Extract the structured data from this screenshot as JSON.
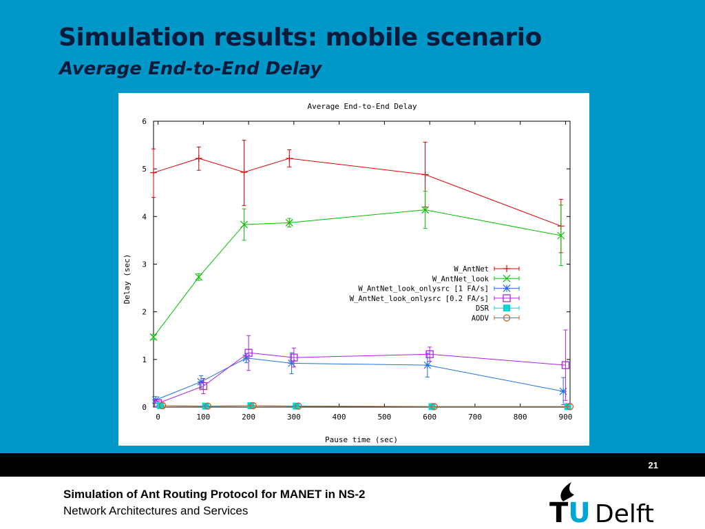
{
  "slide": {
    "title": "Simulation results: mobile scenario",
    "subtitle": "Average End-to-End Delay",
    "page_number": "21"
  },
  "footer": {
    "title": "Simulation of Ant Routing Protocol for MANET in NS-2",
    "subtitle": "Network Architectures and Services",
    "logo_text_left": "TU",
    "logo_text_right": "Delft"
  },
  "colors": {
    "background": "#0098c8",
    "title_text": "#0a1a3a",
    "footer_bar": "#000000",
    "logo_blue": "#00a6d6"
  },
  "chart_data": {
    "type": "line",
    "title": "Average End-to-End Delay",
    "xlabel": "Pause time (sec)",
    "ylabel": "Delay (sec)",
    "xlim": [
      -10,
      910
    ],
    "ylim": [
      0,
      6
    ],
    "x_ticks": [
      0,
      100,
      200,
      300,
      400,
      500,
      600,
      700,
      800,
      900
    ],
    "y_ticks": [
      0,
      1,
      2,
      3,
      4,
      5,
      6
    ],
    "legend_position": "right-middle",
    "series": [
      {
        "name": "W_AntNet",
        "color": "#e00000",
        "marker": "plus",
        "points": [
          {
            "x": -10,
            "y": 4.92,
            "lo": 4.4,
            "hi": 5.42
          },
          {
            "x": 90,
            "y": 5.22,
            "lo": 4.97,
            "hi": 5.46
          },
          {
            "x": 190,
            "y": 4.93,
            "lo": 4.23,
            "hi": 5.6
          },
          {
            "x": 290,
            "y": 5.22,
            "lo": 5.04,
            "hi": 5.4
          },
          {
            "x": 590,
            "y": 4.88,
            "lo": 4.2,
            "hi": 5.56
          },
          {
            "x": 890,
            "y": 3.8,
            "lo": 3.24,
            "hi": 4.36
          }
        ]
      },
      {
        "name": "W_AntNet_look",
        "color": "#00c000",
        "marker": "cross",
        "points": [
          {
            "x": -10,
            "y": 1.47,
            "lo": 1.42,
            "hi": 1.52
          },
          {
            "x": 90,
            "y": 2.73,
            "lo": 2.66,
            "hi": 2.8
          },
          {
            "x": 190,
            "y": 3.83,
            "lo": 3.5,
            "hi": 4.16
          },
          {
            "x": 290,
            "y": 3.87,
            "lo": 3.78,
            "hi": 3.96
          },
          {
            "x": 590,
            "y": 4.14,
            "lo": 3.75,
            "hi": 4.53
          },
          {
            "x": 890,
            "y": 3.6,
            "lo": 2.97,
            "hi": 4.24
          }
        ]
      },
      {
        "name": "W_AntNet_look_onlysrc [1 FA/s]",
        "color": "#2070e0",
        "marker": "star",
        "points": [
          {
            "x": -5,
            "y": 0.15,
            "lo": 0.08,
            "hi": 0.22
          },
          {
            "x": 95,
            "y": 0.53,
            "lo": 0.4,
            "hi": 0.66
          },
          {
            "x": 195,
            "y": 1.03,
            "lo": 0.93,
            "hi": 1.13
          },
          {
            "x": 295,
            "y": 0.92,
            "lo": 0.7,
            "hi": 1.14
          },
          {
            "x": 595,
            "y": 0.88,
            "lo": 0.63,
            "hi": 1.13
          },
          {
            "x": 895,
            "y": 0.33,
            "lo": 0.05,
            "hi": 0.62
          }
        ]
      },
      {
        "name": "W_AntNet_look_onlysrc [0.2 FA/s]",
        "color": "#b020e0",
        "marker": "open-square",
        "points": [
          {
            "x": 0,
            "y": 0.08,
            "lo": 0.04,
            "hi": 0.12
          },
          {
            "x": 100,
            "y": 0.44,
            "lo": 0.28,
            "hi": 0.6
          },
          {
            "x": 200,
            "y": 1.14,
            "lo": 0.77,
            "hi": 1.5
          },
          {
            "x": 300,
            "y": 1.04,
            "lo": 0.84,
            "hi": 1.24
          },
          {
            "x": 600,
            "y": 1.11,
            "lo": 0.96,
            "hi": 1.26
          },
          {
            "x": 900,
            "y": 0.88,
            "lo": 0.14,
            "hi": 1.62
          }
        ]
      },
      {
        "name": "DSR",
        "color": "#00d8d8",
        "marker": "filled-square",
        "points": [
          {
            "x": 5,
            "y": 0.03
          },
          {
            "x": 105,
            "y": 0.02
          },
          {
            "x": 205,
            "y": 0.03
          },
          {
            "x": 305,
            "y": 0.02
          },
          {
            "x": 605,
            "y": 0.01
          },
          {
            "x": 905,
            "y": 0.01
          }
        ]
      },
      {
        "name": "AODV",
        "color": "#c06020",
        "marker": "open-circle",
        "points": [
          {
            "x": 10,
            "y": 0.03
          },
          {
            "x": 110,
            "y": 0.02
          },
          {
            "x": 210,
            "y": 0.03
          },
          {
            "x": 310,
            "y": 0.02
          },
          {
            "x": 610,
            "y": 0.01
          },
          {
            "x": 910,
            "y": 0.01
          }
        ]
      }
    ]
  }
}
